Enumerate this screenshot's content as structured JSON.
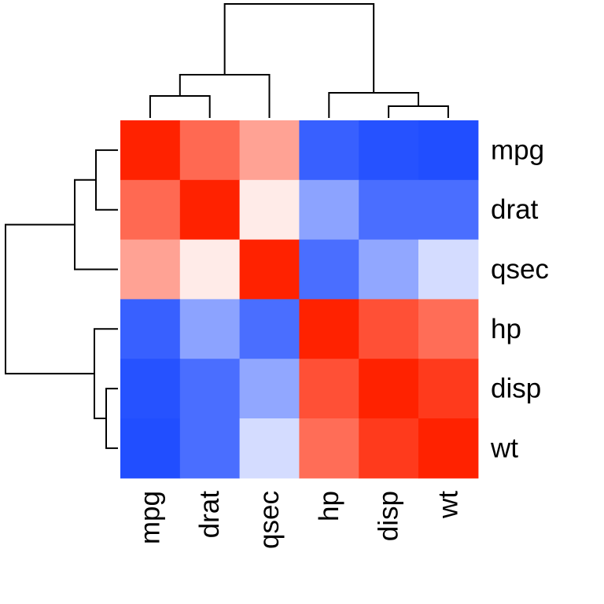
{
  "chart_data": {
    "type": "heatmap",
    "title": "",
    "xlabel": "",
    "ylabel": "",
    "color_low": "#0033ff",
    "color_mid": "#ffffff",
    "color_high": "#ff2200",
    "value_range": [
      -1,
      1
    ],
    "x_labels": [
      "mpg",
      "drat",
      "qsec",
      "hp",
      "disp",
      "wt"
    ],
    "y_labels": [
      "mpg",
      "drat",
      "qsec",
      "hp",
      "disp",
      "wt"
    ],
    "values": [
      [
        1.0,
        0.68,
        0.42,
        -0.78,
        -0.85,
        -0.87
      ],
      [
        0.68,
        1.0,
        0.09,
        -0.45,
        -0.71,
        -0.71
      ],
      [
        0.42,
        0.09,
        1.0,
        -0.71,
        -0.43,
        -0.17
      ],
      [
        -0.78,
        -0.45,
        -0.71,
        1.0,
        0.79,
        0.66
      ],
      [
        -0.85,
        -0.71,
        -0.43,
        0.79,
        1.0,
        0.89
      ],
      [
        -0.87,
        -0.71,
        -0.17,
        0.66,
        0.89,
        1.0
      ]
    ],
    "column_dendrogram_position": "top",
    "row_dendrogram_position": "left",
    "grid": false,
    "legend": "none"
  }
}
